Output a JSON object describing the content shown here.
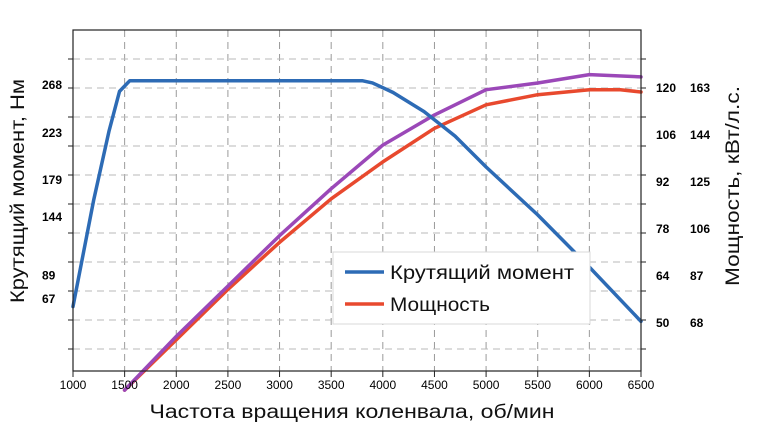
{
  "chart_data": {
    "type": "line",
    "xlabel": "Частота вращения коленвала, об/мин",
    "ylabel_left": "Крутящий момент, Нм",
    "ylabel_right": "Мощность, кВт/л.с.",
    "xlim": [
      1000,
      6500
    ],
    "x_ticks": [
      "1000",
      "1500",
      "2000",
      "2500",
      "3000",
      "3500",
      "4000",
      "4500",
      "5000",
      "5500",
      "6000",
      "6500"
    ],
    "left_ticks": [
      {
        "value": 268,
        "label": "268"
      },
      {
        "value": 223,
        "label": "223"
      },
      {
        "value": 179,
        "label": "179"
      },
      {
        "value": 144,
        "label": "144"
      },
      {
        "value": 89,
        "label": "89"
      },
      {
        "value": 67,
        "label": "67"
      }
    ],
    "right_ticks": [
      {
        "kw": 120,
        "kw_label": "120",
        "hp_label": "163"
      },
      {
        "kw": 106,
        "kw_label": "106",
        "hp_label": "144"
      },
      {
        "kw": 92,
        "kw_label": "92",
        "hp_label": "125"
      },
      {
        "kw": 78,
        "kw_label": "78",
        "hp_label": "106"
      },
      {
        "kw": 64,
        "kw_label": "64",
        "hp_label": "87"
      },
      {
        "kw": 50,
        "kw_label": "50",
        "hp_label": "68"
      }
    ],
    "grid": true,
    "legend_position": "center-right",
    "series": [
      {
        "name": "Крутящий момент",
        "color": "#2d6bb5",
        "axis": "left",
        "x": [
          1000,
          1200,
          1350,
          1450,
          1550,
          2000,
          3000,
          3800,
          3900,
          4100,
          4400,
          4700,
          5000,
          5500,
          6000,
          6500
        ],
        "y": [
          60,
          160,
          225,
          262,
          272,
          272,
          272,
          272,
          270,
          261,
          243,
          220,
          191,
          146,
          97,
          46
        ]
      },
      {
        "name": "Мощность",
        "color": "#e8492e",
        "axis": "right",
        "x": [
          1500,
          2000,
          2500,
          3000,
          3500,
          4000,
          4500,
          5000,
          5500,
          6000,
          6300,
          6500
        ],
        "y": [
          30,
          45,
          60,
          74,
          87,
          98,
          108,
          115,
          118,
          119.5,
          119.5,
          118.8
        ]
      },
      {
        "color": "#9b48b8",
        "axis": "right",
        "x": [
          1500,
          2000,
          2500,
          3000,
          3500,
          4000,
          4500,
          5000,
          5500,
          6000,
          6500
        ],
        "y": [
          30,
          46,
          61,
          76,
          90,
          103,
          112,
          119.5,
          121.5,
          124,
          123.3
        ]
      }
    ]
  }
}
